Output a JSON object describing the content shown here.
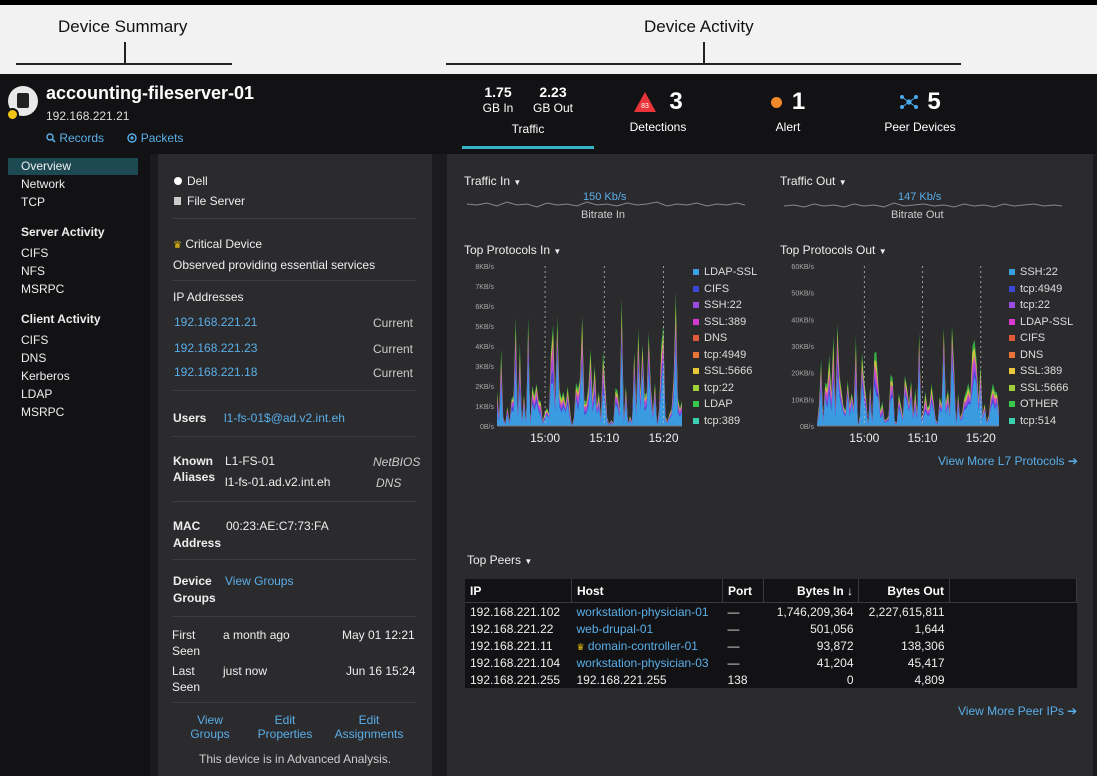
{
  "banner": {
    "left_label": "Device Summary",
    "right_label": "Device Activity"
  },
  "device": {
    "name": "accounting-fileserver-01",
    "ip": "192.168.221.21",
    "records_link": "Records",
    "packets_link": "Packets"
  },
  "metrics": {
    "gb_in_value": "1.75",
    "gb_in_label": "GB In",
    "gb_out_value": "2.23",
    "gb_out_label": "GB Out",
    "traffic_label": "Traffic",
    "detections_value": "3",
    "detections_label": "Detections",
    "detections_badge": "83",
    "alert_value": "1",
    "alert_label": "Alert",
    "peers_value": "5",
    "peers_label": "Peer Devices"
  },
  "sidebar": {
    "items": [
      {
        "label": "Overview",
        "selected": true
      },
      {
        "label": "Network"
      },
      {
        "label": "TCP"
      },
      {
        "label": "Server Activity",
        "section": true
      },
      {
        "label": "CIFS"
      },
      {
        "label": "NFS"
      },
      {
        "label": "MSRPC"
      },
      {
        "label": "Client Activity",
        "section": true
      },
      {
        "label": "CIFS"
      },
      {
        "label": "DNS"
      },
      {
        "label": "Kerberos"
      },
      {
        "label": "LDAP"
      },
      {
        "label": "MSRPC"
      }
    ]
  },
  "summary": {
    "vendor": "Dell",
    "role": "File Server",
    "critical_title": "Critical Device",
    "critical_desc": "Observed providing essential services",
    "ip_heading": "IP Addresses",
    "ips": [
      {
        "ip": "192.168.221.21",
        "status": "Current"
      },
      {
        "ip": "192.168.221.23",
        "status": "Current"
      },
      {
        "ip": "192.168.221.18",
        "status": "Current"
      }
    ],
    "users_label": "Users",
    "users_value": "l1-fs-01$@ad.v2.int.eh",
    "aliases_label_1": "Known",
    "aliases_label_2": "Aliases",
    "alias_1": "L1-FS-01",
    "alias_1_type": "NetBIOS",
    "alias_2": "l1-fs-01.ad.v2.int.eh",
    "alias_2_type": "DNS",
    "mac_label_1": "MAC",
    "mac_label_2": "Address",
    "mac_value": "00:23:AE:C7:73:FA",
    "groups_label_1": "Device",
    "groups_label_2": "Groups",
    "groups_link": "View Groups",
    "first_label_1": "First",
    "first_label_2": "Seen",
    "first_rel": "a month ago",
    "first_abs": "May 01 12:21",
    "last_label_1": "Last",
    "last_label_2": "Seen",
    "last_rel": "just now",
    "last_abs": "Jun 16 15:24",
    "action_1a": "View",
    "action_1b": "Groups",
    "action_2a": "Edit",
    "action_2b": "Properties",
    "action_3a": "Edit",
    "action_3b": "Assignments",
    "analysis_note": "This device is in Advanced Analysis."
  },
  "activity": {
    "traffic_in_title": "Traffic In",
    "traffic_in_rate": "150 Kb/s",
    "traffic_in_caption": "Bitrate In",
    "traffic_out_title": "Traffic Out",
    "traffic_out_rate": "147 Kb/s",
    "traffic_out_caption": "Bitrate Out",
    "protocols_in_title": "Top Protocols In",
    "protocols_out_title": "Top Protocols Out",
    "view_more_l7": "View More L7 Protocols",
    "top_peers_title": "Top Peers",
    "view_more_peers": "View More Peer IPs"
  },
  "protocols_in": {
    "yticks": [
      "8KB/s",
      "7KB/s",
      "6KB/s",
      "5KB/s",
      "4KB/s",
      "3KB/s",
      "2KB/s",
      "1KB/s",
      "0B/s"
    ],
    "xticks": [
      "15:00",
      "15:10",
      "15:20"
    ],
    "legend": [
      {
        "label": "LDAP-SSL",
        "color": "#3aa0e0"
      },
      {
        "label": "CIFS",
        "color": "#3b47d6"
      },
      {
        "label": "SSH:22",
        "color": "#9a4ce0"
      },
      {
        "label": "SSL:389",
        "color": "#d43ad0"
      },
      {
        "label": "DNS",
        "color": "#e05a3a"
      },
      {
        "label": "tcp:4949",
        "color": "#e8743a"
      },
      {
        "label": "SSL:5666",
        "color": "#e8c83a"
      },
      {
        "label": "tcp:22",
        "color": "#9fd03a"
      },
      {
        "label": "LDAP",
        "color": "#3ac84a"
      },
      {
        "label": "tcp:389",
        "color": "#3ad0b0"
      }
    ]
  },
  "protocols_out": {
    "yticks": [
      "60KB/s",
      "50KB/s",
      "40KB/s",
      "30KB/s",
      "20KB/s",
      "10KB/s",
      "0B/s"
    ],
    "xticks": [
      "15:00",
      "15:10",
      "15:20"
    ],
    "legend": [
      {
        "label": "SSH:22",
        "color": "#3aa0e0"
      },
      {
        "label": "tcp:4949",
        "color": "#3b47d6"
      },
      {
        "label": "tcp:22",
        "color": "#9a4ce0"
      },
      {
        "label": "LDAP-SSL",
        "color": "#d43ad0"
      },
      {
        "label": "CIFS",
        "color": "#e05a3a"
      },
      {
        "label": "DNS",
        "color": "#e8743a"
      },
      {
        "label": "SSL:389",
        "color": "#e8c83a"
      },
      {
        "label": "SSL:5666",
        "color": "#9fd03a"
      },
      {
        "label": "OTHER",
        "color": "#3ac84a"
      },
      {
        "label": "tcp:514",
        "color": "#3ad0b0"
      }
    ]
  },
  "peers": {
    "headers": [
      "IP",
      "Host",
      "Port",
      "Bytes In ↓",
      "Bytes Out"
    ],
    "rows": [
      {
        "ip": "192.168.221.102",
        "host": "workstation-physician-01",
        "port": "—",
        "in": "1,746,209,364",
        "out": "2,227,615,811"
      },
      {
        "ip": "192.168.221.22",
        "host": "web-drupal-01",
        "port": "—",
        "in": "501,056",
        "out": "1,644"
      },
      {
        "ip": "192.168.221.11",
        "host": "domain-controller-01",
        "port": "—",
        "in": "93,872",
        "out": "138,306"
      },
      {
        "ip": "192.168.221.104",
        "host": "workstation-physician-03",
        "port": "—",
        "in": "41,204",
        "out": "45,417"
      },
      {
        "ip": "192.168.221.255",
        "host": "192.168.221.255",
        "port": "138",
        "in": "0",
        "out": "4,809"
      }
    ]
  }
}
